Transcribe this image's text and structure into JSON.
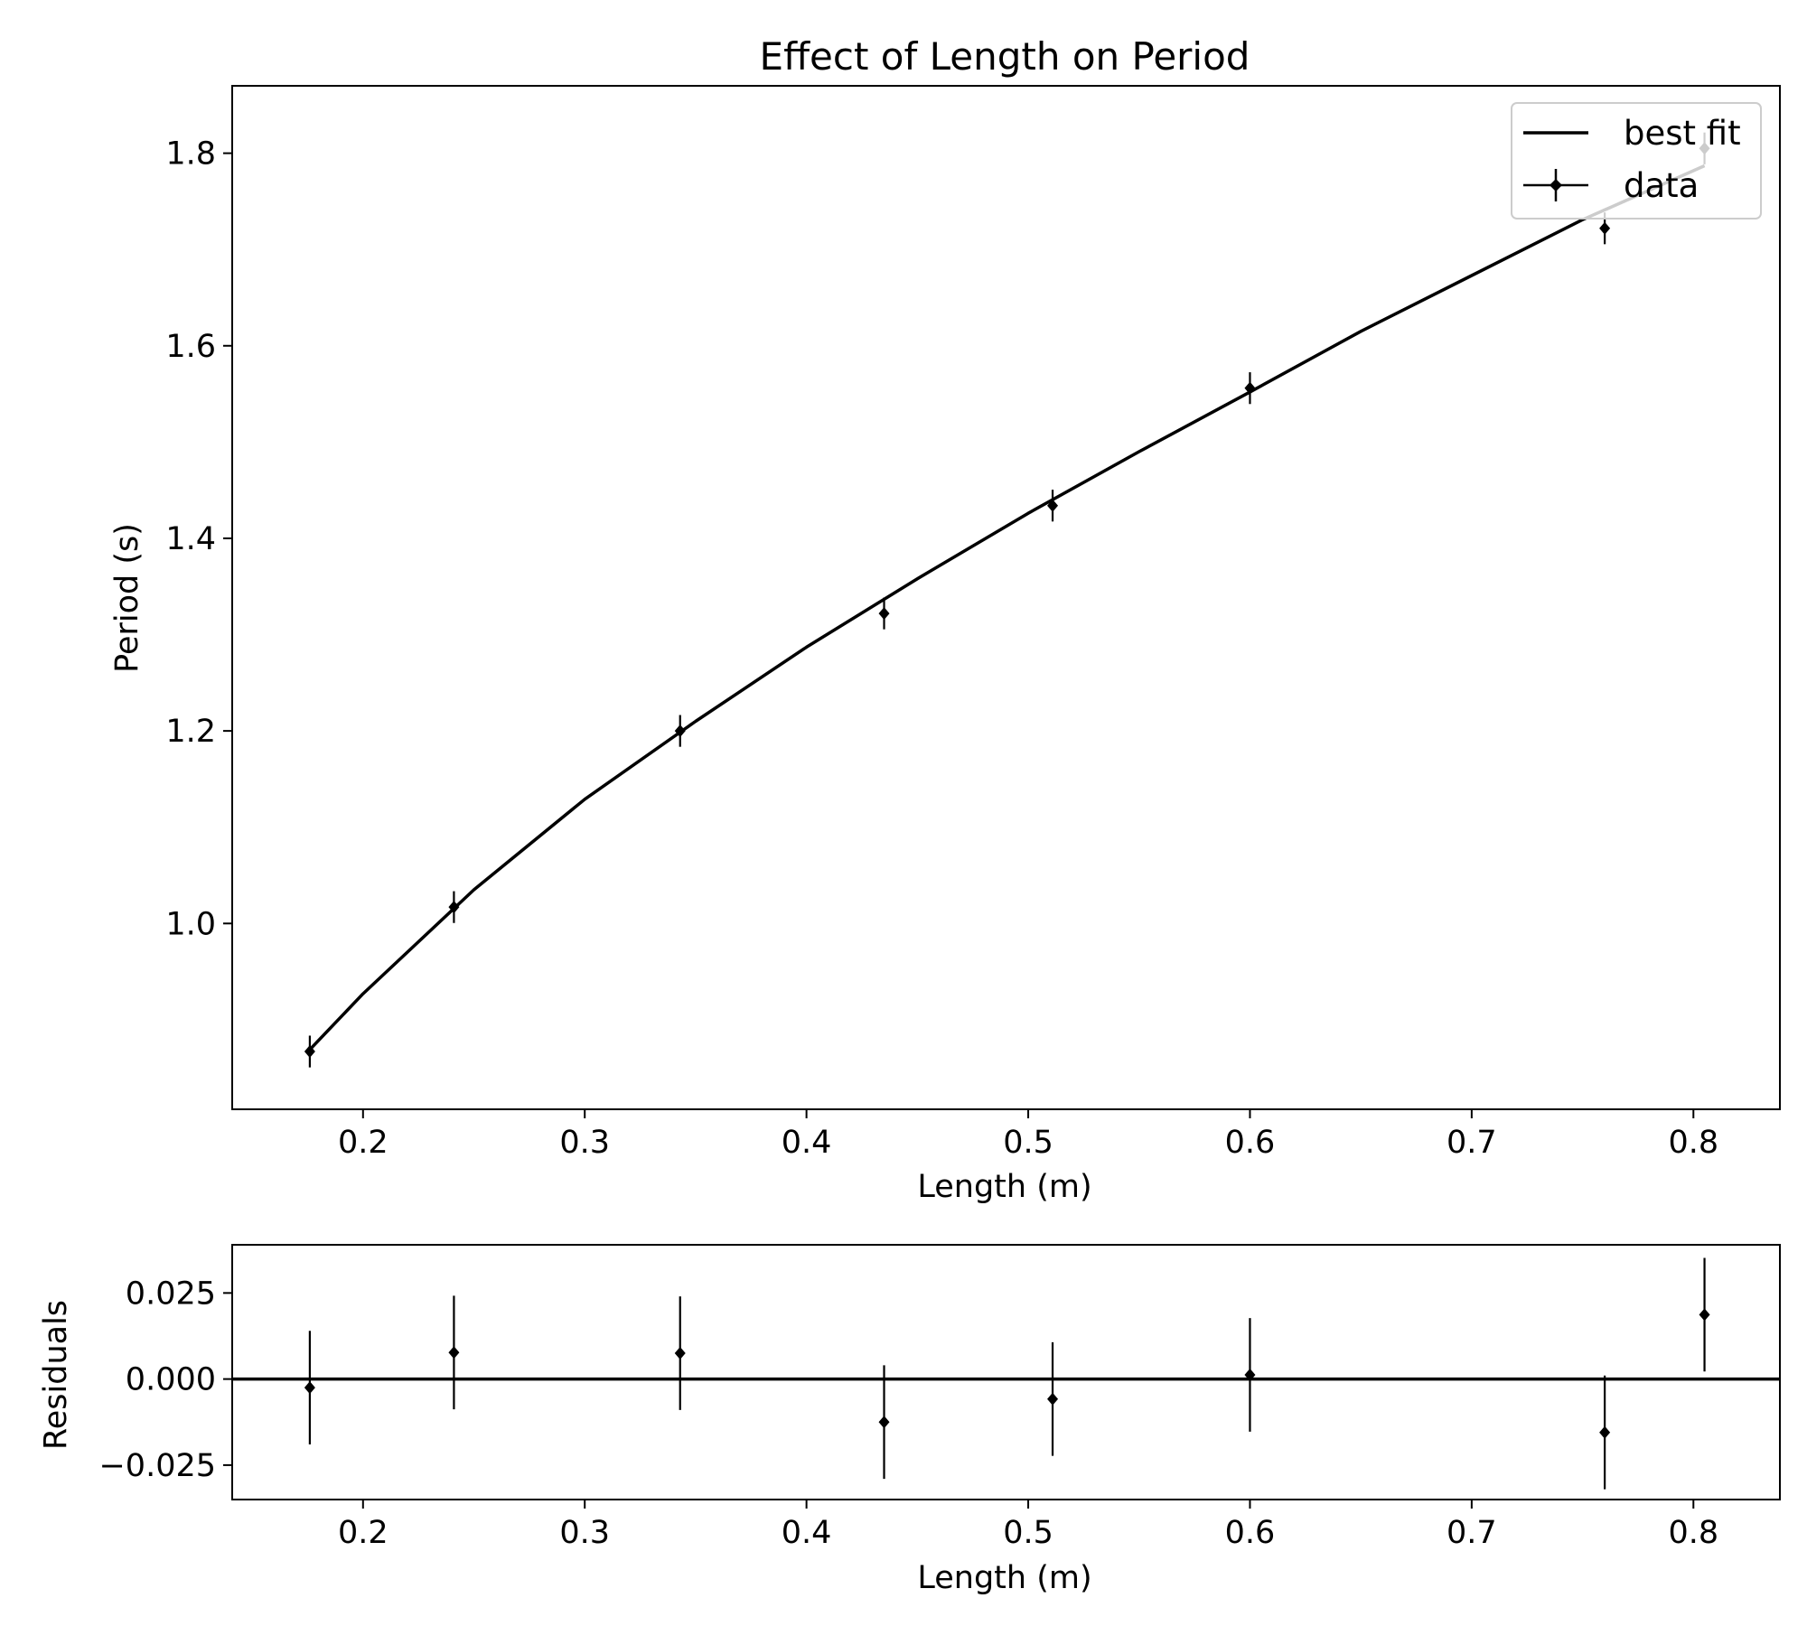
{
  "chart_data": [
    {
      "type": "scatter",
      "title": "Effect of Length on Period",
      "xlabel": "Length (m)",
      "ylabel": "Period (s)",
      "xlim": [
        0.141,
        0.839
      ],
      "ylim": [
        0.807,
        1.87
      ],
      "xticks": [
        0.2,
        0.3,
        0.4,
        0.5,
        0.6,
        0.7,
        0.8
      ],
      "xtick_labels": [
        "0.2",
        "0.3",
        "0.4",
        "0.5",
        "0.6",
        "0.7",
        "0.8"
      ],
      "yticks": [
        1.0,
        1.2,
        1.4,
        1.6,
        1.8
      ],
      "ytick_labels": [
        "1.0",
        "1.2",
        "1.4",
        "1.6",
        "1.8"
      ],
      "grid": false,
      "legend": {
        "placement": "top-right",
        "entries": [
          {
            "label": "best fit",
            "kind": "line"
          },
          {
            "label": "data",
            "kind": "errorbar"
          }
        ]
      },
      "series": [
        {
          "name": "best fit",
          "kind": "line",
          "color": "#000000",
          "x": [
            0.176,
            0.2,
            0.25,
            0.3,
            0.35,
            0.4,
            0.45,
            0.5,
            0.55,
            0.6,
            0.65,
            0.7,
            0.75,
            0.805
          ],
          "y": [
            0.869,
            0.927,
            1.035,
            1.129,
            1.21,
            1.287,
            1.358,
            1.426,
            1.49,
            1.552,
            1.615,
            1.673,
            1.731,
            1.787
          ]
        },
        {
          "name": "data",
          "kind": "errorbar",
          "color": "#000000",
          "x": [
            0.176,
            0.241,
            0.343,
            0.435,
            0.511,
            0.6,
            0.76,
            0.805
          ],
          "y": [
            0.867,
            1.017,
            1.2,
            1.322,
            1.434,
            1.556,
            1.722,
            1.805
          ],
          "yerr": [
            0.0165,
            0.0165,
            0.0165,
            0.0165,
            0.0165,
            0.0165,
            0.0165,
            0.0165
          ]
        }
      ]
    },
    {
      "type": "scatter",
      "title": "",
      "xlabel": "Length (m)",
      "ylabel": "Residuals",
      "xlim": [
        0.141,
        0.839
      ],
      "ylim": [
        -0.035,
        0.039
      ],
      "xticks": [
        0.2,
        0.3,
        0.4,
        0.5,
        0.6,
        0.7,
        0.8
      ],
      "xtick_labels": [
        "0.2",
        "0.3",
        "0.4",
        "0.5",
        "0.6",
        "0.7",
        "0.8"
      ],
      "yticks": [
        0.025,
        0.0,
        -0.025
      ],
      "ytick_labels": [
        "0.025",
        "0.000",
        "−0.025"
      ],
      "grid": false,
      "reference_line_y": 0.0,
      "series": [
        {
          "kind": "errorbar",
          "color": "#000000",
          "x": [
            0.176,
            0.241,
            0.343,
            0.435,
            0.511,
            0.6,
            0.76,
            0.805
          ],
          "y": [
            -0.0025,
            0.0077,
            0.0075,
            -0.0125,
            -0.0058,
            0.0012,
            -0.0155,
            0.0187
          ],
          "yerr": [
            0.0165,
            0.0165,
            0.0165,
            0.0165,
            0.0165,
            0.0165,
            0.0165,
            0.0165
          ]
        }
      ]
    }
  ]
}
